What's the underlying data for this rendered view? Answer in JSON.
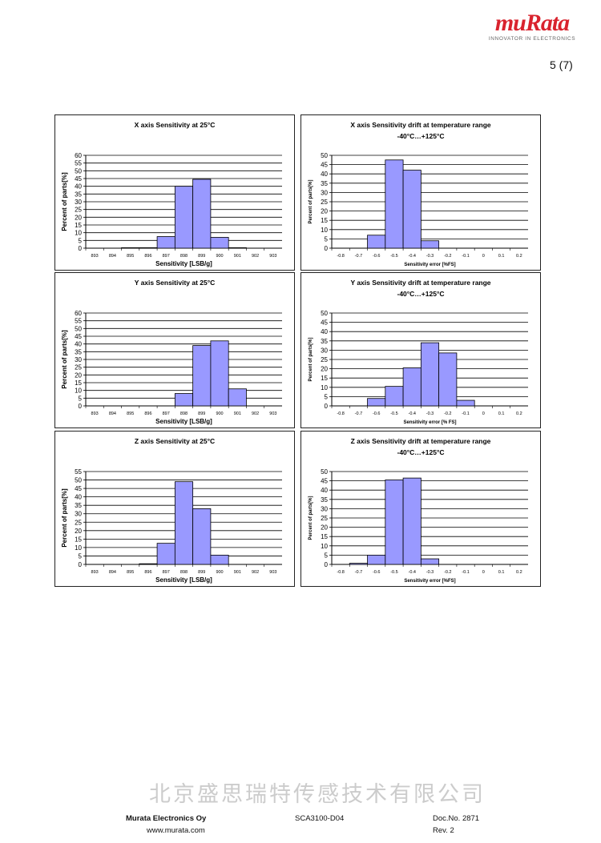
{
  "header": {
    "logo": "muRata",
    "tagline": "INNOVATOR IN ELECTRONICS",
    "page": "5 (7)"
  },
  "colors": {
    "bar": "#9999ff",
    "brand": "#d9232e"
  },
  "chart_data": [
    {
      "type": "bar",
      "title": [
        "X axis Sensitivity at 25°C"
      ],
      "xlabel": "Sensitivity  [LSB/g]",
      "ylabel": "Percent of parts[%]",
      "categories": [
        "893",
        "894",
        "895",
        "896",
        "897",
        "898",
        "899",
        "900",
        "901",
        "902",
        "903"
      ],
      "values": [
        0,
        0,
        0.3,
        0.3,
        7.5,
        40,
        44.5,
        7,
        0.3,
        0,
        0
      ],
      "ylim": [
        0,
        60
      ],
      "ystep": 5,
      "grid": true
    },
    {
      "type": "bar",
      "title": [
        "X axis Sensitivity drift at temperature range",
        "-40°C…+125°C"
      ],
      "xlabel": "Sensitivity error [%FS]",
      "ylabel": "Percent of parts[%]",
      "categories": [
        "-0.8",
        "-0.7",
        "-0.6",
        "-0.5",
        "-0.4",
        "-0.3",
        "-0.2",
        "-0.1",
        "0",
        "0.1",
        "0.2"
      ],
      "values": [
        0,
        0,
        7,
        47.5,
        42,
        4,
        0,
        0,
        0,
        0,
        0
      ],
      "ylim": [
        0,
        50
      ],
      "ystep": 5,
      "grid": true
    },
    {
      "type": "bar",
      "title": [
        "Y axis Sensitivity at 25°C"
      ],
      "xlabel": "Sensitivity [LSB/g]",
      "ylabel": "Percent of parts[%]",
      "categories": [
        "893",
        "894",
        "895",
        "896",
        "897",
        "898",
        "899",
        "900",
        "901",
        "902",
        "903"
      ],
      "values": [
        0,
        0,
        0,
        0,
        0,
        8,
        39,
        42,
        11,
        0,
        0
      ],
      "ylim": [
        0,
        60
      ],
      "ystep": 5,
      "grid": true
    },
    {
      "type": "bar",
      "title": [
        "Y axis Sensitivity drift at temperature range",
        "-40°C…+125°C"
      ],
      "xlabel": "Sensitivity error [% FS]",
      "ylabel": "Percent of parts[%]",
      "categories": [
        "-0.8",
        "-0.7",
        "-0.6",
        "-0.5",
        "-0.4",
        "-0.3",
        "-0.2",
        "-0.1",
        "0",
        "0.1",
        "0.2"
      ],
      "values": [
        0,
        0,
        4,
        10.5,
        20.5,
        34,
        28.5,
        3,
        0,
        0,
        0
      ],
      "ylim": [
        0,
        50
      ],
      "ystep": 5,
      "grid": true
    },
    {
      "type": "bar",
      "title": [
        "Z axis Sensitivity at 25°C"
      ],
      "xlabel": "Sensitivity [LSB/g]",
      "ylabel": "Percent of parts[%]",
      "categories": [
        "893",
        "894",
        "895",
        "896",
        "897",
        "898",
        "899",
        "900",
        "901",
        "902",
        "903"
      ],
      "values": [
        0,
        0,
        0,
        0.4,
        12.5,
        49,
        33,
        5.5,
        0,
        0,
        0
      ],
      "ylim": [
        0,
        55
      ],
      "ystep": 5,
      "grid": true
    },
    {
      "type": "bar",
      "title": [
        "Z axis Sensitivity drift at temperature range",
        "-40°C…+125°C"
      ],
      "xlabel": "Sensitivity error [%FS]",
      "ylabel": "Percent of parts[%]",
      "categories": [
        "-0.8",
        "-0.7",
        "-0.6",
        "-0.5",
        "-0.4",
        "-0.3",
        "-0.2",
        "-0.1",
        "0",
        "0.1",
        "0.2"
      ],
      "values": [
        0,
        0.6,
        5,
        45.5,
        46.5,
        3,
        0,
        0,
        0,
        0,
        0
      ],
      "ylim": [
        0,
        50
      ],
      "ystep": 5,
      "grid": true
    }
  ],
  "footer": {
    "company": "Murata Electronics Oy",
    "website": "www.murata.com",
    "product": "SCA3100-D04",
    "docno": "Doc.No. 2871",
    "rev": "Rev. 2"
  },
  "watermark": "北京盛思瑞特传感技术有限公司"
}
